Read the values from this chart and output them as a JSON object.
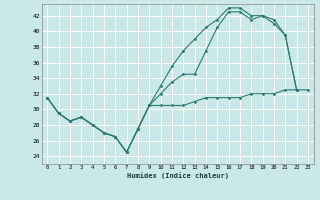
{
  "xlabel": "Humidex (Indice chaleur)",
  "bg_color": "#cbe8e8",
  "grid_color": "#ffffff",
  "line_color": "#2d7a6e",
  "xlim": [
    -0.5,
    23.5
  ],
  "ylim": [
    23.0,
    43.5
  ],
  "yticks": [
    24,
    26,
    28,
    30,
    32,
    34,
    36,
    38,
    40,
    42
  ],
  "xticks": [
    0,
    1,
    2,
    3,
    4,
    5,
    6,
    7,
    8,
    9,
    10,
    11,
    12,
    13,
    14,
    15,
    16,
    17,
    18,
    19,
    20,
    21,
    22,
    23
  ],
  "series1_x": [
    0,
    1,
    2,
    3,
    4,
    5,
    6,
    7,
    8,
    9,
    10,
    11,
    12,
    13,
    14,
    15,
    16,
    17,
    18,
    19,
    20,
    21,
    22
  ],
  "series1_y": [
    31.5,
    29.5,
    28.5,
    29.0,
    28.0,
    27.0,
    26.5,
    24.5,
    27.5,
    30.5,
    32.0,
    33.5,
    34.5,
    34.5,
    37.5,
    40.5,
    42.5,
    42.5,
    41.5,
    42.0,
    41.0,
    39.5,
    32.5
  ],
  "series2_x": [
    0,
    1,
    2,
    3,
    4,
    5,
    6,
    7,
    8,
    9,
    10,
    11,
    12,
    13,
    14,
    15,
    16,
    17,
    18,
    19,
    20,
    21,
    22
  ],
  "series2_y": [
    31.5,
    29.5,
    28.5,
    29.0,
    28.0,
    27.0,
    26.5,
    24.5,
    27.5,
    30.5,
    33.0,
    35.5,
    37.5,
    39.0,
    40.5,
    41.5,
    43.0,
    43.0,
    42.0,
    42.0,
    41.5,
    39.5,
    32.5
  ],
  "series3_x": [
    0,
    1,
    2,
    3,
    4,
    5,
    6,
    7,
    8,
    9,
    10,
    11,
    12,
    13,
    14,
    15,
    16,
    17,
    18,
    19,
    20,
    21,
    22,
    23
  ],
  "series3_y": [
    31.5,
    29.5,
    28.5,
    29.0,
    28.0,
    27.0,
    26.5,
    24.5,
    27.5,
    30.5,
    30.5,
    30.5,
    30.5,
    31.0,
    31.5,
    31.5,
    31.5,
    31.5,
    32.0,
    32.0,
    32.0,
    32.5,
    32.5,
    32.5
  ]
}
